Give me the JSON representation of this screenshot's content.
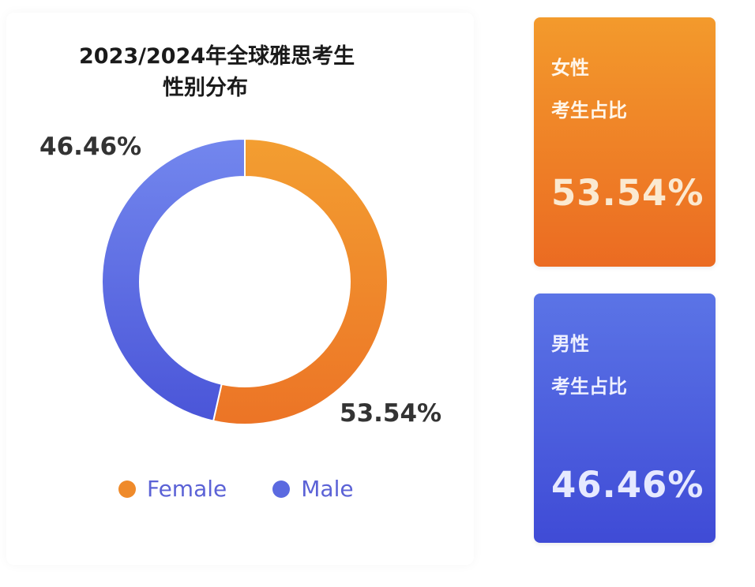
{
  "chart_data": {
    "type": "pie",
    "donut": true,
    "title_lines": [
      "2023/2024年全球雅思考生",
      "性别分布"
    ],
    "categories": [
      "Female",
      "Male"
    ],
    "values": [
      53.54,
      46.46
    ],
    "labels": [
      "53.54%",
      "46.46%"
    ],
    "colors": [
      "#ef8a2a",
      "#5b6ae0"
    ],
    "legend": "bottom",
    "legend_entries": [
      "Female",
      "Male"
    ]
  },
  "cards": [
    {
      "line1": "女性",
      "line2": "考生占比",
      "value": "53.54%",
      "color": "#ef8a2a"
    },
    {
      "line1": "男性",
      "line2": "考生占比",
      "value": "46.46%",
      "color": "#4a57dc"
    }
  ]
}
